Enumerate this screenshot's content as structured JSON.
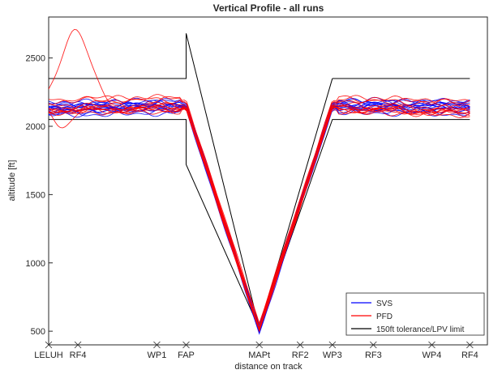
{
  "chart_data": {
    "type": "line",
    "title": "Vertical Profile - all runs",
    "xlabel": "distance on track",
    "ylabel": "altitude [ft]",
    "xlim": [
      0,
      15
    ],
    "ylim": [
      400,
      2800
    ],
    "yticks": [
      500,
      1000,
      1500,
      2000,
      2500
    ],
    "xticks": [
      {
        "label": "LELUH",
        "x": 0
      },
      {
        "label": "RF4",
        "x": 1
      },
      {
        "label": "WP1",
        "x": 3.7
      },
      {
        "label": "FAP",
        "x": 4.7
      },
      {
        "label": "MAPt",
        "x": 7.2
      },
      {
        "label": "RF2",
        "x": 8.6
      },
      {
        "label": "WP3",
        "x": 9.7
      },
      {
        "label": "RF3",
        "x": 11.1
      },
      {
        "label": "WP4",
        "x": 13.1
      },
      {
        "label": "RF4",
        "x": 14.4
      }
    ],
    "grid": false,
    "legend_position": "bottom-right",
    "colors": {
      "SVS": "#0000ff",
      "PFD": "#ff0000",
      "limit": "#000000"
    },
    "legend": [
      {
        "label": "SVS",
        "color": "#0000ff"
      },
      {
        "label": "PFD",
        "color": "#ff0000"
      },
      {
        "label": "150ft tolerance/LPV limit",
        "color": "#000000"
      }
    ],
    "limit_lines": [
      {
        "x": [
          0,
          4.7,
          4.7,
          7.2,
          9.7,
          9.7,
          14.4
        ],
        "y": [
          2350,
          2350,
          2680,
          520,
          2050,
          2050,
          2050
        ]
      },
      {
        "x": [
          0,
          4.7,
          4.7,
          7.2
        ],
        "y": [
          2050,
          2050,
          1720,
          520
        ]
      },
      {
        "x": [
          9.7,
          14.4
        ],
        "y": [
          2350,
          2350
        ]
      },
      {
        "x": [
          7.2,
          9.7
        ],
        "y": [
          520,
          2350
        ]
      }
    ],
    "series": [
      {
        "name": "SVS",
        "runs": 15,
        "profile": {
          "x": [
            0,
            4.7,
            7.2,
            9.7,
            14.4
          ],
          "y": [
            2130,
            2150,
            510,
            2150,
            2140
          ]
        }
      },
      {
        "name": "PFD",
        "runs": 12,
        "profile": {
          "x": [
            0,
            4.7,
            7.2,
            9.7,
            14.4
          ],
          "y": [
            2140,
            2150,
            520,
            2150,
            2120
          ]
        },
        "note_peak": {
          "x": 0.9,
          "y": 2720
        }
      }
    ]
  }
}
